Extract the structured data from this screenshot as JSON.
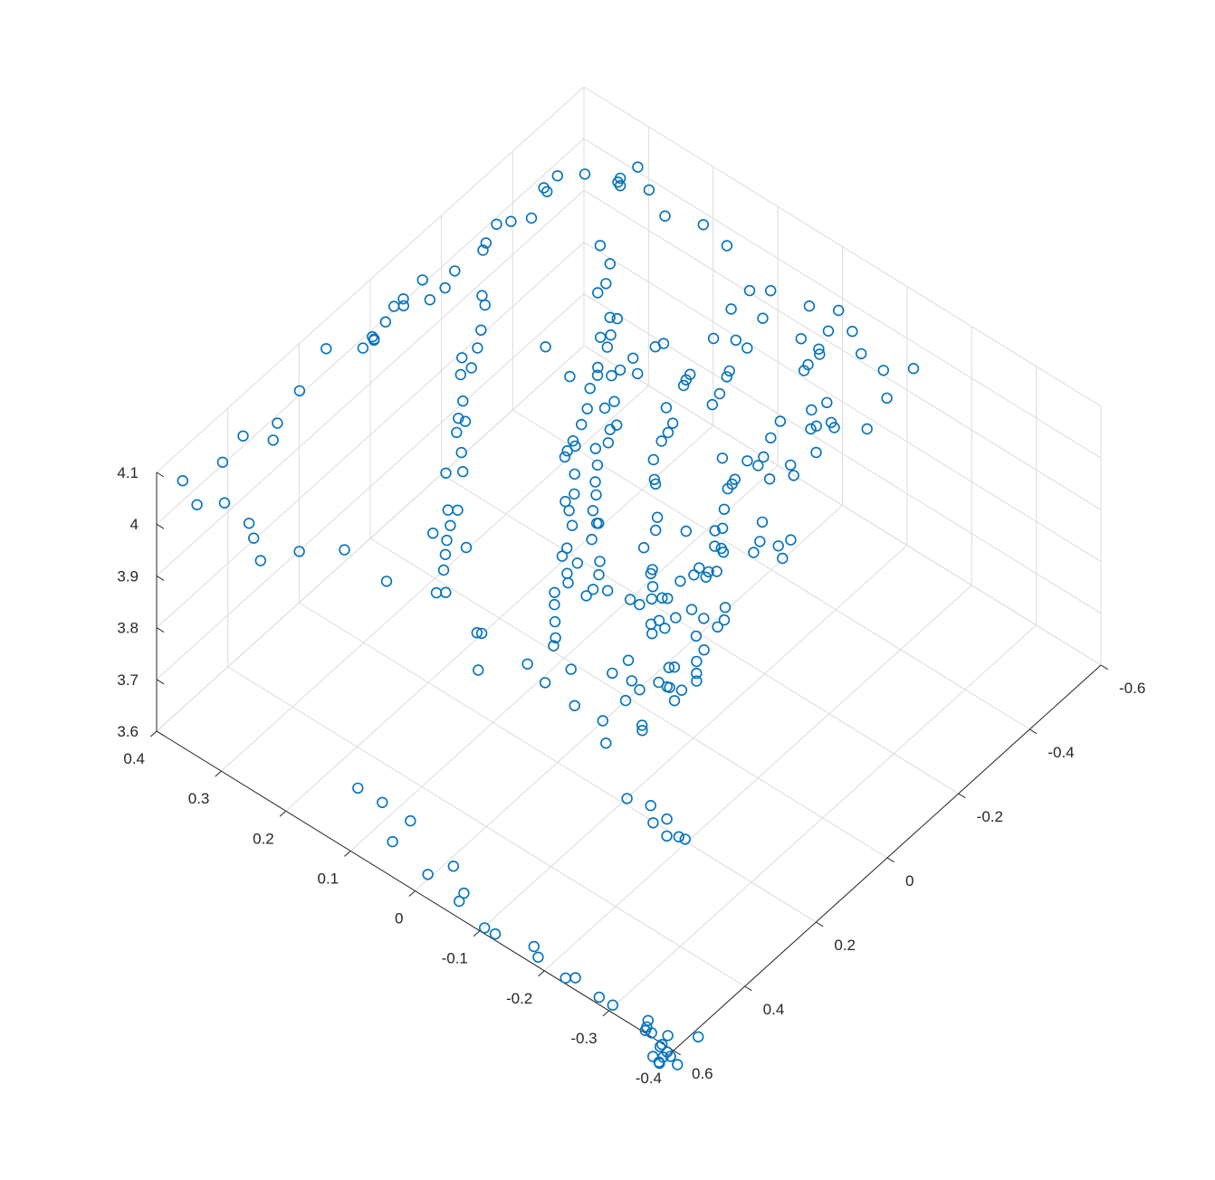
{
  "chart_data": {
    "type": "scatter",
    "title": "",
    "xlabel": "",
    "ylabel": "",
    "zlabel": "",
    "grid": true,
    "marker": "circle",
    "marker_color": "#0072BD",
    "view": "3d-isometric",
    "xlim": [
      -0.6,
      0.6
    ],
    "ylim": [
      -0.4,
      0.4
    ],
    "zlim": [
      3.6,
      4.1
    ],
    "xticks": [
      -0.6,
      -0.4,
      -0.2,
      0,
      0.2,
      0.4,
      0.6
    ],
    "xtick_labels": [
      "-0.6",
      "-0.4",
      "-0.2",
      "0",
      "0.2",
      "0.4",
      "0.6"
    ],
    "yticks": [
      -0.4,
      -0.3,
      -0.2,
      -0.1,
      0,
      0.1,
      0.2,
      0.3,
      0.4
    ],
    "ytick_labels": [
      "-0.4",
      "-0.3",
      "-0.2",
      "-0.1",
      "0",
      "0.1",
      "0.2",
      "0.3",
      "0.4"
    ],
    "zticks": [
      3.6,
      3.7,
      3.8,
      3.9,
      4.0,
      4.1
    ],
    "ztick_labels": [
      "3.6",
      "3.7",
      "3.8",
      "3.9",
      "4",
      "4.1"
    ],
    "points": [
      [
        0.548,
        -0.361,
        3.985
      ],
      [
        0.571,
        -0.402,
        3.992
      ],
      [
        0.567,
        -0.39,
        3.985
      ],
      [
        0.57,
        -0.373,
        3.975
      ],
      [
        0.563,
        -0.348,
        3.977
      ],
      [
        0.51,
        -0.315,
        3.952
      ],
      [
        0.522,
        -0.285,
        3.95
      ],
      [
        0.485,
        -0.232,
        3.993
      ],
      [
        0.474,
        -0.221,
        4.021
      ],
      [
        0.486,
        -0.184,
        4.029
      ],
      [
        0.46,
        -0.124,
        4.011
      ],
      [
        0.504,
        -0.121,
        4.072
      ],
      [
        0.489,
        -0.042,
        4.061
      ],
      [
        0.539,
        -0.064,
        4.038
      ],
      [
        0.479,
        -0.029,
        4.046
      ],
      [
        0.465,
        0.027,
        4.072
      ],
      [
        0.446,
        0.129,
        4.003
      ],
      [
        0.479,
        0.176,
        4.048
      ],
      [
        0.546,
        0.209,
        4.061
      ],
      [
        0.544,
        0.27,
        3.995
      ],
      [
        0.518,
        0.295,
        4.003
      ],
      [
        0.491,
        0.317,
        3.998
      ],
      [
        0.529,
        0.334,
        4.048
      ],
      [
        0.541,
        0.37,
        4.024
      ],
      [
        0.534,
        0.396,
        4.046
      ],
      [
        0.44,
        0.386,
        4.031
      ],
      [
        0.37,
        0.393,
        4.033
      ],
      [
        0.309,
        0.38,
        3.997
      ],
      [
        0.29,
        0.384,
        4.015
      ],
      [
        0.224,
        0.386,
        4.035
      ],
      [
        0.131,
        0.396,
        4.051
      ],
      [
        0.084,
        0.365,
        4.047
      ],
      [
        0.065,
        0.361,
        4.06
      ],
      [
        0.049,
        0.367,
        4.041
      ],
      [
        0.008,
        0.372,
        4.045
      ],
      [
        0.053,
        0.365,
        4.043
      ],
      [
        -0.034,
        0.382,
        4.041
      ],
      [
        -0.05,
        0.376,
        4.037
      ],
      [
        -0.071,
        0.388,
        4.028
      ],
      [
        -0.111,
        0.369,
        4.016
      ],
      [
        -0.125,
        0.388,
        4.031
      ],
      [
        -0.161,
        0.373,
        4.005
      ],
      [
        -0.21,
        0.385,
        3.998
      ],
      [
        -0.293,
        0.387,
        3.985
      ],
      [
        -0.305,
        0.389,
        3.99
      ],
      [
        -0.322,
        0.382,
        4.021
      ],
      [
        -0.357,
        0.379,
        4.007
      ],
      [
        -0.4,
        0.371,
        3.993
      ],
      [
        -0.471,
        0.391,
        3.992
      ],
      [
        -0.478,
        0.39,
        3.981
      ],
      [
        -0.504,
        0.388,
        3.997
      ],
      [
        -0.568,
        0.381,
        3.966
      ],
      [
        -0.535,
        0.308,
        4.035
      ],
      [
        -0.572,
        0.332,
        3.986
      ],
      [
        -0.564,
        0.324,
        3.99
      ],
      [
        -0.586,
        0.309,
        4.024
      ],
      [
        -0.545,
        0.269,
        4.036
      ],
      [
        -0.519,
        0.23,
        4.032
      ],
      [
        -0.583,
        0.206,
        3.994
      ],
      [
        -0.575,
        0.165,
        3.99
      ],
      [
        -0.519,
        0.099,
        3.989
      ],
      [
        -0.538,
        0.077,
        3.994
      ],
      [
        -0.58,
        -0.005,
        3.993
      ],
      [
        -0.577,
        -0.028,
        3.972
      ],
      [
        -0.54,
        -0.062,
        3.978
      ],
      [
        -0.532,
        -0.101,
        3.981
      ],
      [
        -0.542,
        -0.142,
        4.01
      ],
      [
        -0.478,
        -0.136,
        3.988
      ],
      [
        -0.426,
        -0.134,
        3.959
      ],
      [
        -0.376,
        -0.106,
        3.981
      ],
      [
        -0.374,
        -0.112,
        3.977
      ],
      [
        -0.322,
        -0.057,
        3.979
      ],
      [
        -0.268,
        -0.072,
        3.992
      ],
      [
        -0.235,
        -0.079,
        3.981
      ],
      [
        -0.183,
        -0.044,
        3.984
      ],
      [
        -0.195,
        -0.076,
        3.996
      ],
      [
        -0.16,
        -0.076,
        3.982
      ],
      [
        -0.125,
        -0.091,
        4.006
      ],
      [
        -0.1,
        -0.098,
        4.018
      ],
      [
        -0.061,
        -0.114,
        4.015
      ],
      [
        -0.028,
        -0.118,
        3.997
      ],
      [
        0.003,
        -0.148,
        3.998
      ],
      [
        0.027,
        -0.151,
        3.978
      ],
      [
        0.053,
        -0.138,
        3.991
      ],
      [
        0.093,
        -0.152,
        4.013
      ],
      [
        0.124,
        -0.148,
        4.017
      ],
      [
        0.166,
        -0.164,
        3.985
      ],
      [
        0.178,
        -0.158,
        4.025
      ],
      [
        0.22,
        -0.177,
        4.008
      ],
      [
        0.253,
        -0.21,
        3.979
      ],
      [
        0.261,
        -0.206,
        3.98
      ],
      [
        0.299,
        -0.211,
        3.979
      ],
      [
        0.317,
        -0.174,
        4.004
      ],
      [
        0.349,
        -0.197,
        4.002
      ],
      [
        0.382,
        -0.185,
        4.028
      ],
      [
        0.367,
        -0.219,
        4.013
      ],
      [
        0.399,
        -0.215,
        4.009
      ],
      [
        0.423,
        -0.254,
        3.996
      ],
      [
        0.429,
        -0.257,
        4.012
      ],
      [
        0.356,
        -0.267,
        4.022
      ],
      [
        0.368,
        -0.266,
        4.054
      ],
      [
        0.357,
        -0.256,
        4.041
      ],
      [
        0.318,
        -0.257,
        4.011
      ],
      [
        0.285,
        -0.262,
        4.012
      ],
      [
        0.269,
        -0.253,
        4.01
      ],
      [
        0.247,
        -0.241,
        4.01
      ],
      [
        0.212,
        -0.221,
        4.022
      ],
      [
        0.197,
        -0.225,
        3.989
      ],
      [
        0.185,
        -0.218,
        4.037
      ],
      [
        0.168,
        -0.19,
        4.022
      ],
      [
        0.137,
        -0.213,
        3.987
      ],
      [
        0.131,
        -0.22,
        4.002
      ],
      [
        0.103,
        -0.206,
        3.998
      ],
      [
        0.09,
        -0.169,
        4.02
      ],
      [
        0.061,
        -0.157,
        4.003
      ],
      [
        0.04,
        -0.155,
        4.038
      ],
      [
        0.025,
        -0.157,
        4.026
      ],
      [
        -0.002,
        -0.144,
        4.038
      ],
      [
        0.398,
        -0.13,
        4.003
      ],
      [
        0.349,
        -0.079,
        3.994
      ],
      [
        0.362,
        -0.083,
        3.99
      ],
      [
        0.316,
        -0.06,
        3.99
      ],
      [
        0.285,
        -0.042,
        3.99
      ],
      [
        0.252,
        -0.024,
        3.979
      ],
      [
        0.232,
        -0.034,
        3.993
      ],
      [
        0.213,
        -0.022,
        3.99
      ],
      [
        0.186,
        -0.023,
        3.994
      ],
      [
        0.178,
        0.005,
        3.981
      ],
      [
        0.15,
        0.013,
        3.973
      ],
      [
        0.11,
        0.027,
        3.981
      ],
      [
        0.086,
        0.045,
        3.981
      ],
      [
        0.062,
        0.064,
        3.969
      ],
      [
        0.035,
        0.065,
        3.966
      ],
      [
        0.014,
        0.076,
        3.983
      ],
      [
        -0.007,
        0.099,
        3.997
      ],
      [
        -0.011,
        0.105,
        3.978
      ],
      [
        -0.042,
        0.106,
        3.979
      ],
      [
        -0.052,
        0.115,
        3.976
      ],
      [
        -0.092,
        0.124,
        3.976
      ],
      [
        -0.123,
        0.132,
        3.981
      ],
      [
        -0.145,
        0.117,
        3.98
      ],
      [
        -0.176,
        0.157,
        3.968
      ],
      [
        -0.21,
        0.164,
        3.967
      ],
      [
        -0.25,
        0.171,
        3.991
      ],
      [
        -0.287,
        0.186,
        3.98
      ],
      [
        -0.318,
        0.193,
        3.987
      ],
      [
        -0.33,
        0.211,
        3.968
      ],
      [
        -0.35,
        0.241,
        3.98
      ],
      [
        -0.386,
        0.248,
        3.97
      ],
      [
        -0.412,
        0.256,
        3.986
      ],
      [
        -0.444,
        0.289,
        3.976
      ],
      [
        0.395,
        0.08,
        3.987
      ],
      [
        0.339,
        0.097,
        4.013
      ],
      [
        0.362,
        0.087,
        4.005
      ],
      [
        0.304,
        0.084,
        4.015
      ],
      [
        0.315,
        0.108,
        4.017
      ],
      [
        0.276,
        0.124,
        4.009
      ],
      [
        0.265,
        0.157,
        3.962
      ],
      [
        0.25,
        0.142,
        4.009
      ],
      [
        0.221,
        0.143,
        3.99
      ],
      [
        0.187,
        0.18,
        4.012
      ],
      [
        0.163,
        0.167,
        4.01
      ],
      [
        0.134,
        0.185,
        4.015
      ],
      [
        0.117,
        0.202,
        4.03
      ],
      [
        0.08,
        0.209,
        4.023
      ],
      [
        0.063,
        0.229,
        4.003
      ],
      [
        0.023,
        0.244,
        4.0
      ],
      [
        -0.007,
        0.264,
        4.017
      ],
      [
        -0.03,
        0.26,
        4.019
      ],
      [
        -0.054,
        0.288,
        4.002
      ],
      [
        -0.087,
        0.282,
        4.005
      ],
      [
        -0.124,
        0.297,
        4.005
      ],
      [
        -0.148,
        0.304,
        4.033
      ],
      [
        -0.185,
        0.329,
        4.009
      ],
      [
        0.182,
        -0.117,
        3.984
      ],
      [
        0.21,
        -0.083,
        4.002
      ],
      [
        0.229,
        -0.071,
        4.007
      ],
      [
        0.239,
        -0.066,
        3.997
      ],
      [
        0.21,
        -0.118,
        4.012
      ],
      [
        0.18,
        -0.053,
        3.991
      ],
      [
        0.163,
        -0.045,
        4.0
      ],
      [
        0.142,
        -0.021,
        4.011
      ],
      [
        0.119,
        -0.016,
        4.024
      ],
      [
        0.092,
        -0.004,
        3.998
      ],
      [
        0.079,
        0.012,
        4.002
      ],
      [
        0.048,
        0.024,
        4.004
      ],
      [
        0.025,
        0.038,
        4.004
      ],
      [
        -0.001,
        0.049,
        4.012
      ],
      [
        -0.032,
        0.069,
        4.009
      ],
      [
        -0.062,
        0.066,
        4.004
      ],
      [
        -0.078,
        0.072,
        4.015
      ],
      [
        -0.115,
        0.082,
        3.993
      ],
      [
        -0.148,
        0.104,
        4.001
      ],
      [
        -0.162,
        0.116,
        4.033
      ],
      [
        -0.208,
        0.128,
        4.006
      ],
      [
        -0.208,
        0.101,
        4.02
      ],
      [
        -0.237,
        0.124,
        4.014
      ],
      [
        -0.198,
        0.157,
        3.995
      ],
      [
        -0.152,
        0.175,
        3.992
      ],
      [
        -0.276,
        0.111,
        4.022
      ],
      [
        -0.303,
        0.113,
        4.01
      ],
      [
        -0.267,
        0.191,
        3.984
      ],
      [
        -0.18,
        0.228,
        3.991
      ],
      [
        0.034,
        -0.063,
        4.019
      ],
      [
        0.057,
        -0.073,
        4.016
      ],
      [
        0.092,
        -0.074,
        4.005
      ],
      [
        0.044,
        -0.113,
        4.037
      ],
      [
        0.117,
        -0.101,
        3.999
      ],
      [
        0.136,
        -0.109,
        4.009
      ],
      [
        0.154,
        -0.122,
        4.005
      ],
      [
        0.166,
        -0.143,
        4.007
      ],
      [
        0.197,
        -0.144,
        4.025
      ],
      [
        0.228,
        -0.16,
        4.008
      ],
      [
        0.236,
        -0.177,
        4.033
      ],
      [
        0.254,
        -0.176,
        4.018
      ],
      [
        -0.043,
        -0.016,
        4.008
      ],
      [
        -0.059,
        -0.009,
        3.984
      ],
      [
        -0.093,
        0.013,
        3.993
      ],
      [
        -0.123,
        0.017,
        4.007
      ],
      [
        -0.154,
        0.024,
        3.999
      ],
      [
        -0.189,
        0.036,
        3.986
      ],
      [
        -0.216,
        0.061,
        3.98
      ],
      [
        -0.252,
        0.054,
        4.006
      ],
      [
        -0.268,
        0.059,
        4.003
      ],
      [
        -0.301,
        0.071,
        3.984
      ],
      [
        -0.038,
        -0.217,
        4.014
      ],
      [
        -0.077,
        -0.189,
        3.992
      ],
      [
        -0.092,
        -0.2,
        4.003
      ],
      [
        -0.047,
        -0.177,
        4.01
      ],
      [
        -0.053,
        -0.164,
        3.975
      ],
      [
        -0.101,
        -0.151,
        3.994
      ],
      [
        -0.167,
        -0.126,
        4.017
      ],
      [
        -0.2,
        -0.145,
        4.018
      ],
      [
        -0.251,
        -0.112,
        3.981
      ],
      [
        -0.187,
        -0.097,
        4.008
      ],
      [
        -0.294,
        -0.128,
        3.991
      ],
      [
        -0.315,
        -0.108,
        4.008
      ],
      [
        -0.348,
        -0.091,
        4.011
      ],
      [
        -0.322,
        -0.113,
        4.013
      ],
      [
        -0.382,
        -0.096,
        4.008
      ],
      [
        -0.418,
        -0.047,
        4.021
      ],
      [
        -0.416,
        -0.042,
        4.007
      ],
      [
        -0.463,
        -0.039,
        4.017
      ],
      [
        -0.487,
        -0.027,
        3.983
      ],
      [
        -0.482,
        -0.001,
        3.996
      ],
      [
        -0.533,
        -0.015,
        3.99
      ],
      [
        -0.545,
        0.021,
        4.003
      ],
      [
        -0.458,
        0.094,
        3.995
      ],
      [
        -0.456,
        0.044,
        4.017
      ],
      [
        -0.387,
        0.03,
        4.013
      ],
      [
        -0.426,
        0.069,
        3.974
      ],
      [
        -0.394,
        0.086,
        3.984
      ],
      [
        -0.348,
        0.04,
        3.974
      ],
      [
        -0.357,
        0.041,
        3.979
      ],
      [
        -0.297,
        0.023,
        3.986
      ],
      [
        -0.26,
        0.014,
        3.995
      ],
      [
        0.593,
        -0.302,
        3.608
      ],
      [
        0.593,
        -0.281,
        3.607
      ],
      [
        0.587,
        -0.241,
        3.61
      ],
      [
        0.593,
        -0.229,
        3.604
      ],
      [
        0.583,
        -0.181,
        3.601
      ],
      [
        0.571,
        -0.168,
        3.604
      ],
      [
        0.589,
        -0.118,
        3.601
      ],
      [
        0.592,
        -0.103,
        3.603
      ],
      [
        0.561,
        -0.054,
        3.613
      ],
      [
        0.567,
        -0.05,
        3.598
      ],
      [
        0.525,
        -0.018,
        3.615
      ],
      [
        0.557,
        0.004,
        3.602
      ],
      [
        0.497,
        0.064,
        3.622
      ],
      [
        0.529,
        0.074,
        3.594
      ],
      [
        0.478,
        0.118,
        3.604
      ],
      [
        0.463,
        0.164,
        3.587
      ],
      [
        0.558,
        -0.415,
        3.612
      ],
      [
        0.598,
        -0.39,
        3.62
      ],
      [
        0.61,
        -0.366,
        3.638
      ],
      [
        0.61,
        -0.364,
        3.624
      ],
      [
        0.589,
        -0.373,
        3.58
      ],
      [
        0.6,
        -0.366,
        3.608
      ],
      [
        0.598,
        -0.367,
        3.562
      ],
      [
        0.584,
        -0.375,
        3.558
      ],
      [
        0.59,
        -0.372,
        3.55
      ],
      [
        0.587,
        -0.371,
        3.545
      ],
      [
        0.596,
        -0.393,
        3.581
      ],
      [
        0.589,
        -0.384,
        3.578
      ],
      [
        0.589,
        -0.4,
        3.566
      ],
      [
        0.578,
        -0.37,
        3.575
      ],
      [
        0.574,
        -0.342,
        3.578
      ]
    ]
  }
}
